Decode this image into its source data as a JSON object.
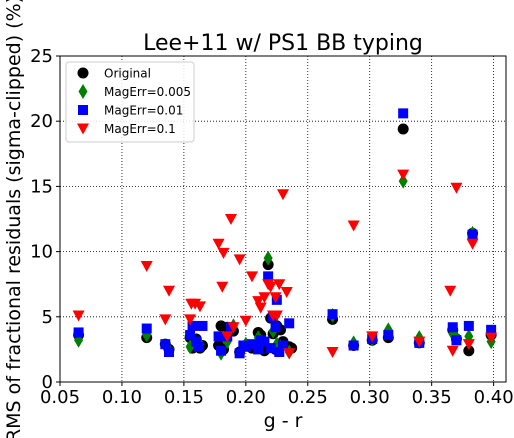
{
  "chart_data": {
    "type": "scatter",
    "title": "Lee+11 w/ PS1 BB typing",
    "xlabel": "g - r",
    "ylabel": "RMS of fractional residuals (sigma-clipped) (%)",
    "xlim": [
      0.05,
      0.41
    ],
    "ylim": [
      0,
      25
    ],
    "xticks": [
      "0.05",
      "0.10",
      "0.15",
      "0.20",
      "0.25",
      "0.30",
      "0.35",
      "0.40"
    ],
    "yticks": [
      "0",
      "5",
      "10",
      "15",
      "20",
      "25"
    ],
    "grid": true,
    "legend_position": "top-left",
    "series": [
      {
        "name": "Original",
        "marker": "circle",
        "color": "#000000",
        "points": [
          [
            0.065,
            3.6
          ],
          [
            0.12,
            3.4
          ],
          [
            0.135,
            2.9
          ],
          [
            0.138,
            2.5
          ],
          [
            0.155,
            3.4
          ],
          [
            0.157,
            2.6
          ],
          [
            0.16,
            3.3
          ],
          [
            0.163,
            2.6
          ],
          [
            0.165,
            2.8
          ],
          [
            0.178,
            2.8
          ],
          [
            0.18,
            4.3
          ],
          [
            0.182,
            2.5
          ],
          [
            0.185,
            4.2
          ],
          [
            0.19,
            3.9
          ],
          [
            0.195,
            2.3
          ],
          [
            0.2,
            2.8
          ],
          [
            0.205,
            2.6
          ],
          [
            0.21,
            3.8
          ],
          [
            0.212,
            3.6
          ],
          [
            0.215,
            2.4
          ],
          [
            0.218,
            9.0
          ],
          [
            0.22,
            4.9
          ],
          [
            0.222,
            3.7
          ],
          [
            0.224,
            2.5
          ],
          [
            0.225,
            4.3
          ],
          [
            0.228,
            4.0
          ],
          [
            0.23,
            3.1
          ],
          [
            0.235,
            2.7
          ],
          [
            0.237,
            2.6
          ],
          [
            0.27,
            4.8
          ],
          [
            0.287,
            2.8
          ],
          [
            0.302,
            3.2
          ],
          [
            0.315,
            3.4
          ],
          [
            0.327,
            19.4
          ],
          [
            0.34,
            3.0
          ],
          [
            0.367,
            4.0
          ],
          [
            0.37,
            3.3
          ],
          [
            0.38,
            2.4
          ],
          [
            0.383,
            11.4
          ],
          [
            0.398,
            3.6
          ]
        ]
      },
      {
        "name": "MagErr=0.005",
        "marker": "diamond",
        "color": "#008000",
        "points": [
          [
            0.065,
            3.2
          ],
          [
            0.12,
            3.6
          ],
          [
            0.137,
            2.6
          ],
          [
            0.155,
            2.7
          ],
          [
            0.163,
            2.9
          ],
          [
            0.18,
            2.2
          ],
          [
            0.185,
            3.1
          ],
          [
            0.19,
            4.3
          ],
          [
            0.2,
            2.9
          ],
          [
            0.21,
            3.4
          ],
          [
            0.218,
            9.5
          ],
          [
            0.222,
            3.9
          ],
          [
            0.225,
            2.9
          ],
          [
            0.228,
            2.7
          ],
          [
            0.235,
            2.3
          ],
          [
            0.27,
            5.1
          ],
          [
            0.287,
            3.0
          ],
          [
            0.302,
            3.3
          ],
          [
            0.315,
            4.0
          ],
          [
            0.327,
            15.4
          ],
          [
            0.34,
            3.4
          ],
          [
            0.367,
            3.7
          ],
          [
            0.37,
            3.4
          ],
          [
            0.38,
            3.5
          ],
          [
            0.383,
            11.4
          ],
          [
            0.398,
            3.1
          ]
        ]
      },
      {
        "name": "MagErr=0.01",
        "marker": "square",
        "color": "#0000ff",
        "points": [
          [
            0.065,
            3.8
          ],
          [
            0.12,
            4.1
          ],
          [
            0.135,
            2.9
          ],
          [
            0.138,
            2.3
          ],
          [
            0.155,
            3.6
          ],
          [
            0.157,
            4.3
          ],
          [
            0.16,
            3.1
          ],
          [
            0.162,
            2.7
          ],
          [
            0.165,
            4.3
          ],
          [
            0.178,
            3.5
          ],
          [
            0.18,
            2.4
          ],
          [
            0.185,
            3.5
          ],
          [
            0.188,
            4.2
          ],
          [
            0.195,
            2.2
          ],
          [
            0.198,
            2.8
          ],
          [
            0.2,
            2.7
          ],
          [
            0.205,
            2.9
          ],
          [
            0.21,
            2.5
          ],
          [
            0.212,
            3.2
          ],
          [
            0.215,
            3.1
          ],
          [
            0.218,
            8.1
          ],
          [
            0.22,
            2.6
          ],
          [
            0.222,
            5.0
          ],
          [
            0.224,
            4.2
          ],
          [
            0.225,
            6.3
          ],
          [
            0.227,
            2.3
          ],
          [
            0.23,
            2.8
          ],
          [
            0.235,
            4.5
          ],
          [
            0.27,
            5.2
          ],
          [
            0.287,
            2.8
          ],
          [
            0.302,
            3.3
          ],
          [
            0.315,
            3.6
          ],
          [
            0.327,
            20.6
          ],
          [
            0.34,
            3.0
          ],
          [
            0.367,
            4.2
          ],
          [
            0.37,
            3.2
          ],
          [
            0.38,
            4.3
          ],
          [
            0.383,
            11.3
          ],
          [
            0.398,
            4.0
          ]
        ]
      },
      {
        "name": "MagErr=0.1",
        "marker": "triangle-down",
        "color": "#ff0000",
        "points": [
          [
            0.065,
            5.1
          ],
          [
            0.12,
            8.9
          ],
          [
            0.135,
            4.8
          ],
          [
            0.138,
            7.0
          ],
          [
            0.155,
            4.8
          ],
          [
            0.156,
            6.0
          ],
          [
            0.159,
            6.0
          ],
          [
            0.163,
            5.8
          ],
          [
            0.178,
            10.6
          ],
          [
            0.181,
            7.3
          ],
          [
            0.182,
            9.9
          ],
          [
            0.185,
            3.5
          ],
          [
            0.188,
            12.5
          ],
          [
            0.19,
            4.2
          ],
          [
            0.195,
            9.4
          ],
          [
            0.2,
            4.7
          ],
          [
            0.205,
            8.1
          ],
          [
            0.21,
            6.2
          ],
          [
            0.212,
            5.7
          ],
          [
            0.215,
            6.5
          ],
          [
            0.218,
            7.5
          ],
          [
            0.22,
            7.3
          ],
          [
            0.222,
            5.1
          ],
          [
            0.224,
            6.5
          ],
          [
            0.225,
            5.1
          ],
          [
            0.227,
            7.5
          ],
          [
            0.23,
            14.4
          ],
          [
            0.233,
            6.9
          ],
          [
            0.235,
            2.2
          ],
          [
            0.27,
            2.3
          ],
          [
            0.287,
            12.0
          ],
          [
            0.302,
            3.5
          ],
          [
            0.327,
            15.9
          ],
          [
            0.34,
            3.1
          ],
          [
            0.365,
            7.0
          ],
          [
            0.367,
            2.4
          ],
          [
            0.37,
            14.9
          ],
          [
            0.38,
            2.9
          ],
          [
            0.383,
            10.6
          ],
          [
            0.398,
            3.4
          ]
        ]
      }
    ]
  }
}
